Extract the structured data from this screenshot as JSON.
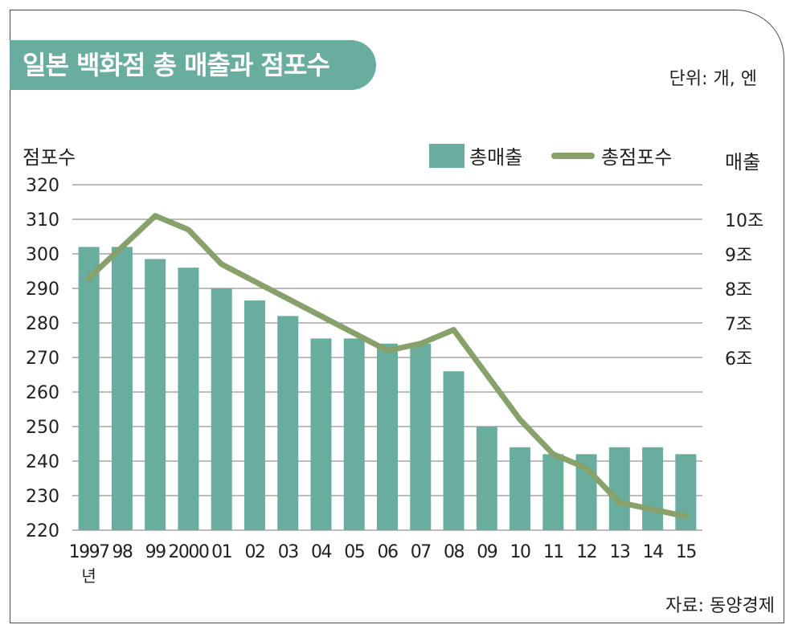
{
  "header": {
    "title": "일본 백화점 총 매출과 점포수",
    "unit": "단위: 개, 엔",
    "source": "자료: 동양경제"
  },
  "axes": {
    "left_title": "점포수",
    "right_title": "매출",
    "year_suffix": "년"
  },
  "legend": {
    "bar_label": "총매출",
    "line_label": "총점포수"
  },
  "colors": {
    "bar": "#69ad9e",
    "line": "#88a06a",
    "grid": "#7a7a7a"
  },
  "chart_data": {
    "type": "bar",
    "categories": [
      "1997",
      "98",
      "99",
      "2000",
      "01",
      "02",
      "03",
      "04",
      "05",
      "06",
      "07",
      "08",
      "09",
      "10",
      "11",
      "12",
      "13",
      "14",
      "15"
    ],
    "series": [
      {
        "name": "총매출",
        "type": "bar",
        "axis": "right",
        "values": [
          9.2,
          9.2,
          8.85,
          8.6,
          8.0,
          7.65,
          7.2,
          6.55,
          6.55,
          6.4,
          6.4,
          5.6,
          4.0,
          3.4,
          3.2,
          3.2,
          3.4,
          3.4,
          3.2
        ]
      },
      {
        "name": "총점포수",
        "type": "line",
        "axis": "left",
        "values": [
          293,
          302,
          311,
          307,
          297,
          292,
          287,
          282,
          277,
          272,
          274,
          278,
          265,
          252,
          242,
          238,
          228,
          226,
          224
        ]
      }
    ],
    "y_left": {
      "label": "점포수",
      "ticks": [
        320,
        310,
        300,
        290,
        280,
        270,
        260,
        250,
        240,
        230,
        220
      ],
      "ylim": [
        220,
        320
      ]
    },
    "y_right": {
      "label": "매출",
      "ticks": [
        "10조",
        "9조",
        "8조",
        "7조",
        "6조"
      ],
      "ylim": [
        1.0,
        11.0
      ]
    },
    "grid": true,
    "legend_position": "top-right"
  }
}
